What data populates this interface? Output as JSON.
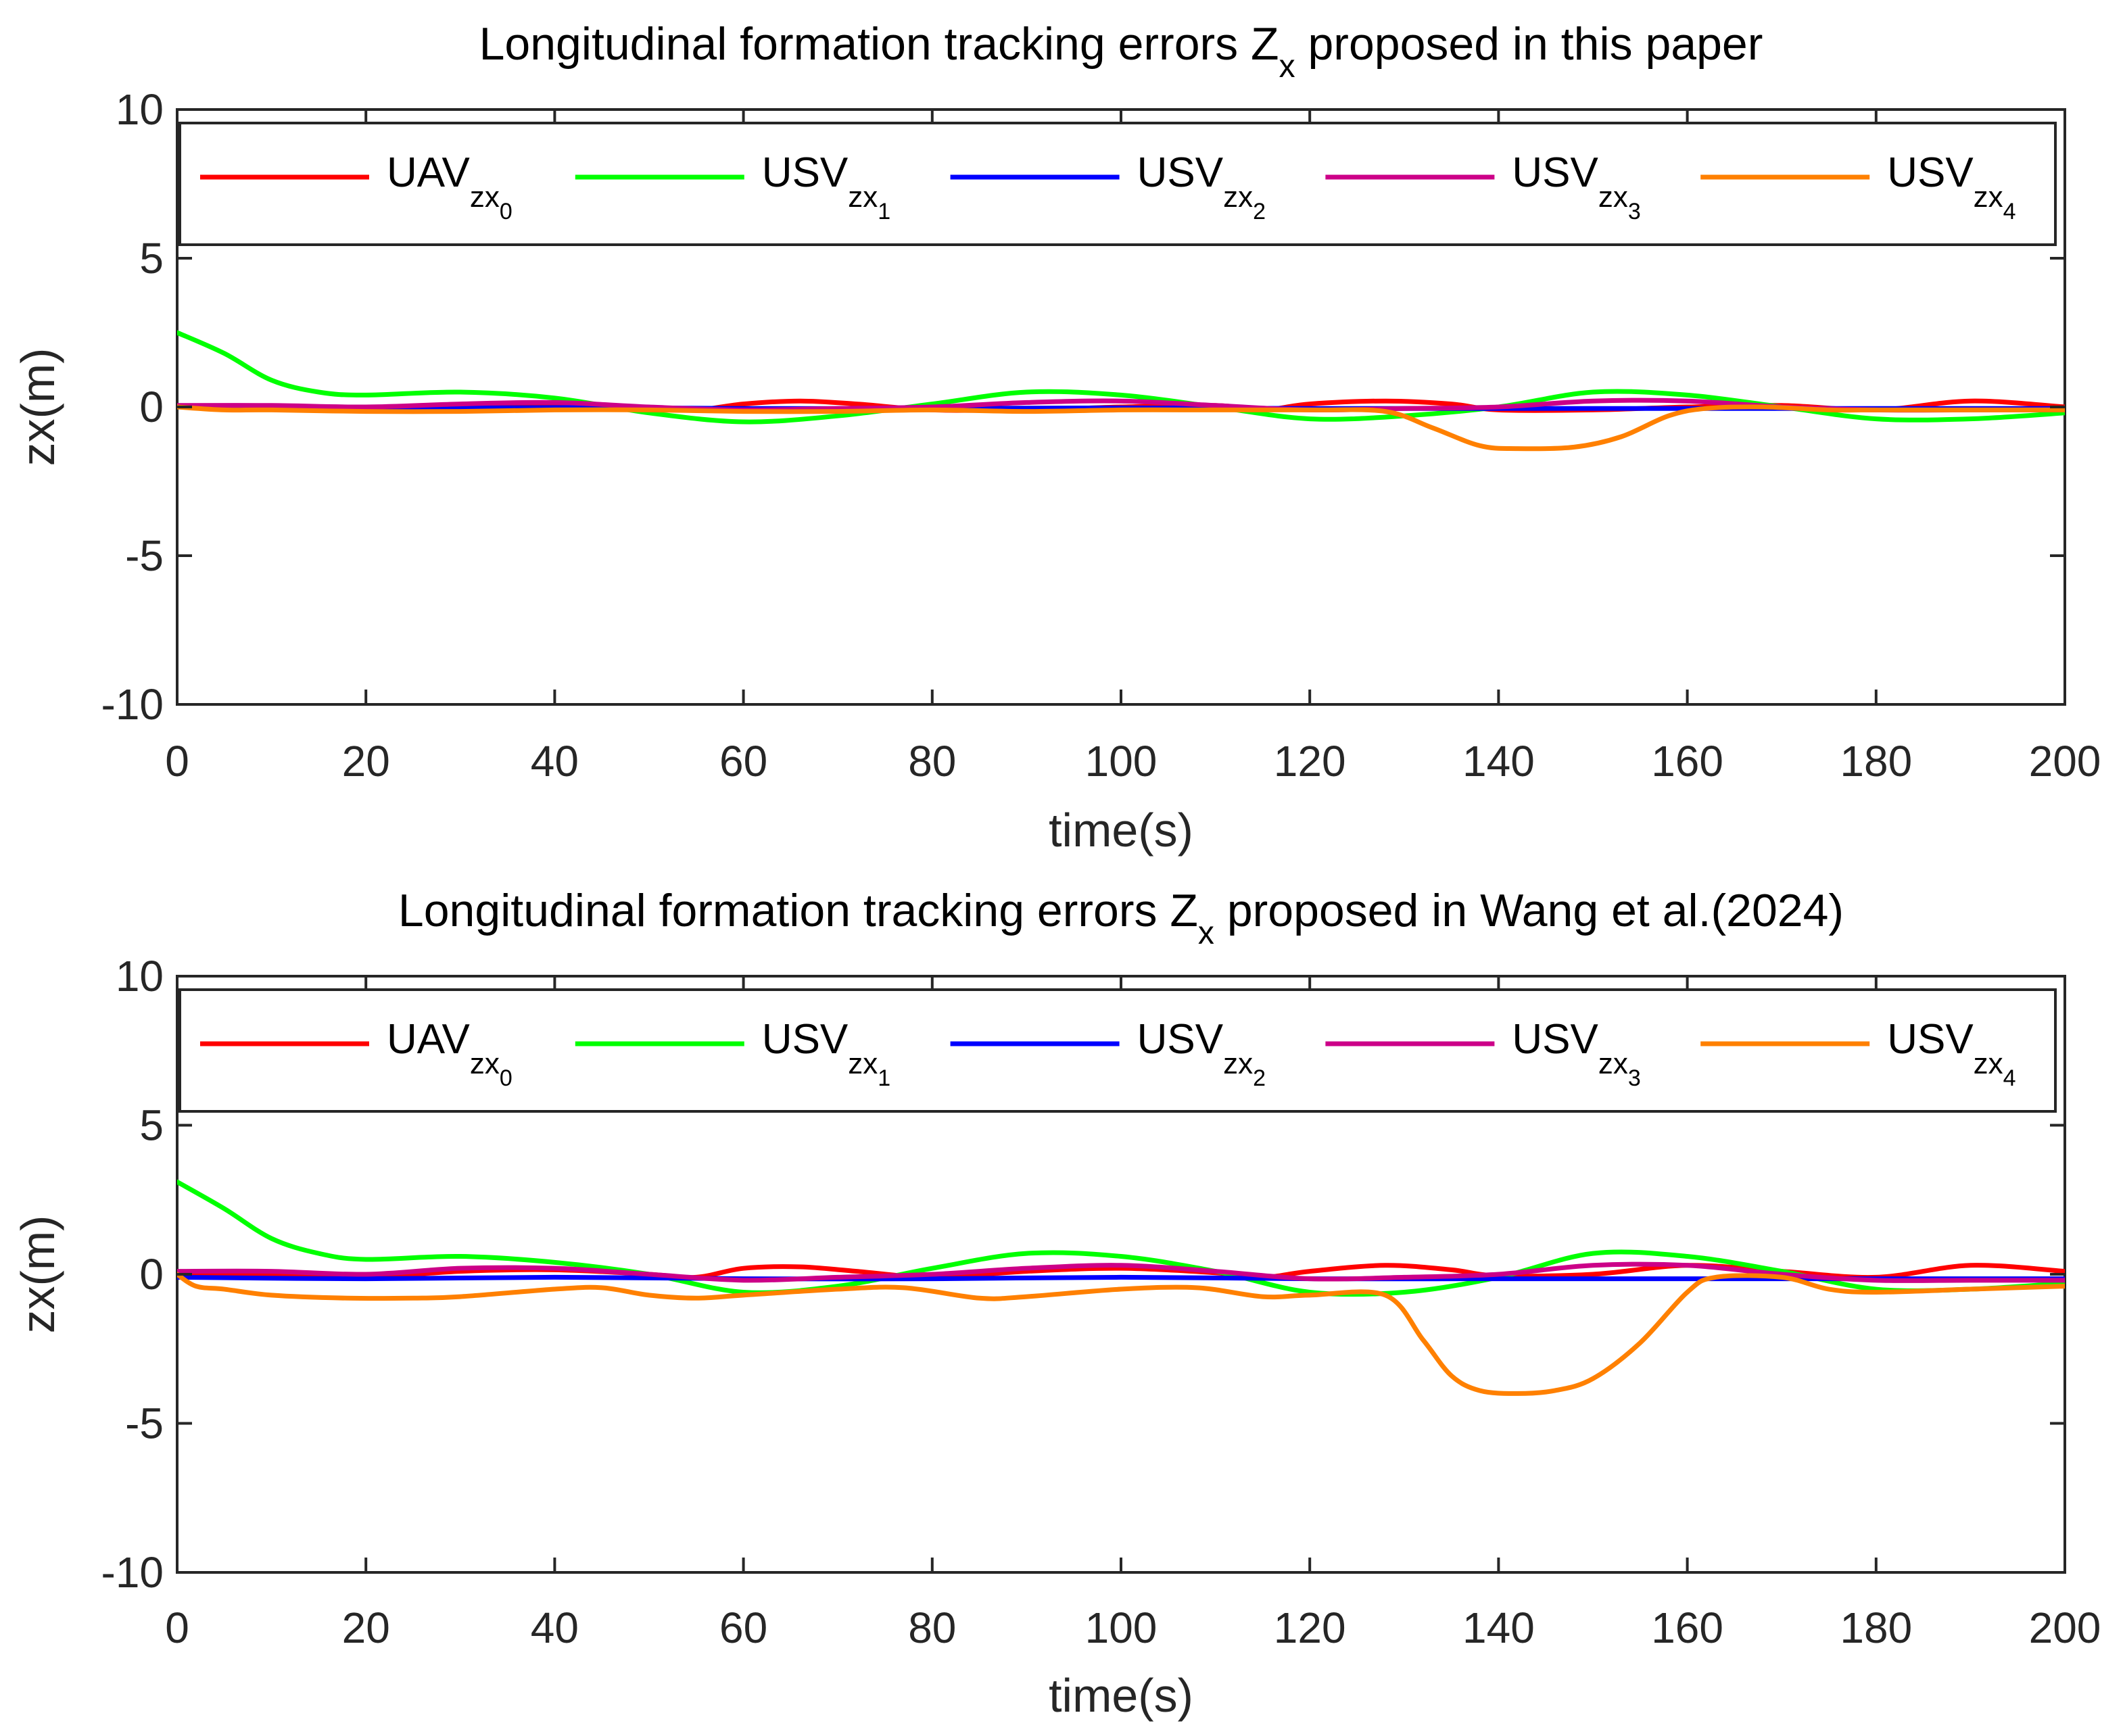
{
  "chart_data": [
    {
      "type": "line",
      "title": "Longitudinal formation tracking errors Z",
      "title_sub": "x",
      "title_suffix": " proposed in this paper",
      "xlabel": "time(s)",
      "ylabel": "zx(m)",
      "xlim": [
        0,
        200
      ],
      "ylim": [
        -10,
        10
      ],
      "xticks": [
        0,
        20,
        40,
        60,
        80,
        100,
        120,
        140,
        160,
        180,
        200
      ],
      "yticks": [
        -10,
        -5,
        0,
        5,
        10
      ],
      "grid": false,
      "legend_position": "top",
      "series": [
        {
          "name": "UAV",
          "sub": "zx",
          "subsub": "0",
          "color": "#ff0000",
          "x": [
            0,
            10,
            20,
            30,
            40,
            50,
            55,
            60,
            66,
            72,
            80,
            90,
            100,
            110,
            115,
            120,
            128,
            135,
            140,
            150,
            160,
            170,
            180,
            190,
            200
          ],
          "y": [
            0,
            0,
            -0.1,
            -0.05,
            0.05,
            -0.05,
            -0.1,
            0.1,
            0.2,
            0.1,
            -0.1,
            -0.1,
            0,
            0.05,
            -0.1,
            0.1,
            0.2,
            0.1,
            -0.1,
            -0.1,
            0,
            0.05,
            -0.1,
            0.2,
            0
          ]
        },
        {
          "name": "USV",
          "sub": "zx",
          "subsub": "1",
          "color": "#00ff00",
          "x": [
            0,
            5,
            10,
            15,
            20,
            30,
            40,
            50,
            60,
            70,
            80,
            90,
            100,
            110,
            120,
            130,
            140,
            150,
            160,
            170,
            180,
            190,
            200
          ],
          "y": [
            2.5,
            1.8,
            0.9,
            0.5,
            0.4,
            0.5,
            0.3,
            -0.2,
            -0.5,
            -0.3,
            0.1,
            0.5,
            0.4,
            0,
            -0.4,
            -0.3,
            0,
            0.5,
            0.4,
            0,
            -0.4,
            -0.4,
            -0.2
          ]
        },
        {
          "name": "USV",
          "sub": "zx",
          "subsub": "2",
          "color": "#0000ff",
          "x": [
            0,
            20,
            40,
            60,
            80,
            100,
            120,
            140,
            160,
            180,
            200
          ],
          "y": [
            0,
            -0.05,
            -0.02,
            -0.05,
            -0.05,
            -0.03,
            -0.05,
            -0.05,
            -0.05,
            -0.05,
            -0.05
          ]
        },
        {
          "name": "USV",
          "sub": "zx",
          "subsub": "3",
          "color": "#cc0088",
          "x": [
            0,
            10,
            20,
            30,
            40,
            50,
            60,
            70,
            80,
            90,
            100,
            110,
            120,
            130,
            140,
            150,
            160,
            170,
            180,
            190,
            200
          ],
          "y": [
            0.05,
            0.05,
            0,
            0.1,
            0.15,
            0,
            -0.1,
            -0.05,
            0,
            0.15,
            0.2,
            0.05,
            -0.1,
            -0.05,
            0,
            0.2,
            0.2,
            0,
            -0.1,
            -0.1,
            -0.1
          ]
        },
        {
          "name": "USV",
          "sub": "zx",
          "subsub": "4",
          "color": "#ff8000",
          "x": [
            0,
            5,
            10,
            20,
            30,
            40,
            50,
            60,
            70,
            80,
            90,
            100,
            110,
            120,
            128,
            133,
            138,
            142,
            148,
            153,
            158,
            162,
            168,
            175,
            180,
            190,
            200
          ],
          "y": [
            0,
            -0.1,
            -0.1,
            -0.15,
            -0.15,
            -0.1,
            -0.1,
            -0.15,
            -0.15,
            -0.1,
            -0.15,
            -0.1,
            -0.1,
            -0.1,
            -0.15,
            -0.7,
            -1.3,
            -1.4,
            -1.35,
            -1.0,
            -0.3,
            -0.05,
            0,
            -0.1,
            -0.1,
            -0.1,
            -0.1
          ]
        }
      ]
    },
    {
      "type": "line",
      "title": "Longitudinal formation tracking errors Z",
      "title_sub": "x",
      "title_suffix": " proposed in Wang et al.(2024)",
      "xlabel": "time(s)",
      "ylabel": "zx(m)",
      "xlim": [
        0,
        200
      ],
      "ylim": [
        -10,
        10
      ],
      "xticks": [
        0,
        20,
        40,
        60,
        80,
        100,
        120,
        140,
        160,
        180,
        200
      ],
      "yticks": [
        -10,
        -5,
        0,
        5,
        10
      ],
      "grid": false,
      "legend_position": "top",
      "series": [
        {
          "name": "UAV",
          "sub": "zx",
          "subsub": "0",
          "color": "#ff0000",
          "x": [
            0,
            10,
            20,
            30,
            40,
            50,
            55,
            60,
            66,
            72,
            80,
            90,
            100,
            110,
            115,
            120,
            128,
            135,
            140,
            150,
            160,
            170,
            180,
            190,
            200
          ],
          "y": [
            0,
            -0.05,
            -0.1,
            0.1,
            0.15,
            0,
            -0.1,
            0.2,
            0.25,
            0.1,
            -0.1,
            0.1,
            0.2,
            0.05,
            -0.1,
            0.1,
            0.3,
            0.15,
            -0.05,
            0,
            0.3,
            0.1,
            -0.1,
            0.3,
            0.1
          ]
        },
        {
          "name": "USV",
          "sub": "zx",
          "subsub": "1",
          "color": "#00ff00",
          "x": [
            0,
            5,
            10,
            15,
            20,
            30,
            40,
            50,
            60,
            70,
            80,
            90,
            100,
            110,
            120,
            130,
            140,
            150,
            160,
            170,
            180,
            190,
            200
          ],
          "y": [
            3.1,
            2.2,
            1.2,
            0.7,
            0.5,
            0.6,
            0.4,
            0,
            -0.6,
            -0.4,
            0.2,
            0.7,
            0.6,
            0.1,
            -0.6,
            -0.6,
            -0.1,
            0.7,
            0.6,
            0.1,
            -0.5,
            -0.5,
            -0.3
          ]
        },
        {
          "name": "USV",
          "sub": "zx",
          "subsub": "2",
          "color": "#0000ff",
          "x": [
            0,
            20,
            40,
            60,
            80,
            100,
            120,
            140,
            160,
            180,
            200
          ],
          "y": [
            -0.1,
            -0.15,
            -0.1,
            -0.15,
            -0.15,
            -0.1,
            -0.15,
            -0.15,
            -0.15,
            -0.15,
            -0.15
          ]
        },
        {
          "name": "USV",
          "sub": "zx",
          "subsub": "3",
          "color": "#cc0088",
          "x": [
            0,
            10,
            20,
            30,
            40,
            50,
            60,
            70,
            80,
            90,
            100,
            110,
            120,
            130,
            140,
            150,
            160,
            170,
            180,
            190,
            200
          ],
          "y": [
            0.1,
            0.1,
            0,
            0.2,
            0.2,
            0,
            -0.2,
            -0.1,
            0,
            0.2,
            0.3,
            0.1,
            -0.15,
            -0.1,
            0,
            0.3,
            0.3,
            0,
            -0.2,
            -0.2,
            -0.2
          ]
        },
        {
          "name": "USV",
          "sub": "zx",
          "subsub": "4",
          "color": "#ff8000",
          "x": [
            0,
            2,
            5,
            10,
            18,
            25,
            30,
            40,
            45,
            50,
            55,
            60,
            70,
            77,
            85,
            90,
            100,
            108,
            115,
            120,
            128,
            132,
            135,
            138,
            142,
            146,
            150,
            155,
            160,
            163,
            170,
            175,
            180,
            190,
            200
          ],
          "y": [
            0,
            -0.4,
            -0.5,
            -0.7,
            -0.8,
            -0.8,
            -0.75,
            -0.5,
            -0.45,
            -0.7,
            -0.8,
            -0.7,
            -0.5,
            -0.45,
            -0.8,
            -0.75,
            -0.5,
            -0.45,
            -0.75,
            -0.7,
            -0.7,
            -2.2,
            -3.4,
            -3.9,
            -4.0,
            -3.9,
            -3.5,
            -2.3,
            -0.6,
            -0.1,
            -0.1,
            -0.5,
            -0.6,
            -0.5,
            -0.4
          ]
        }
      ]
    }
  ]
}
